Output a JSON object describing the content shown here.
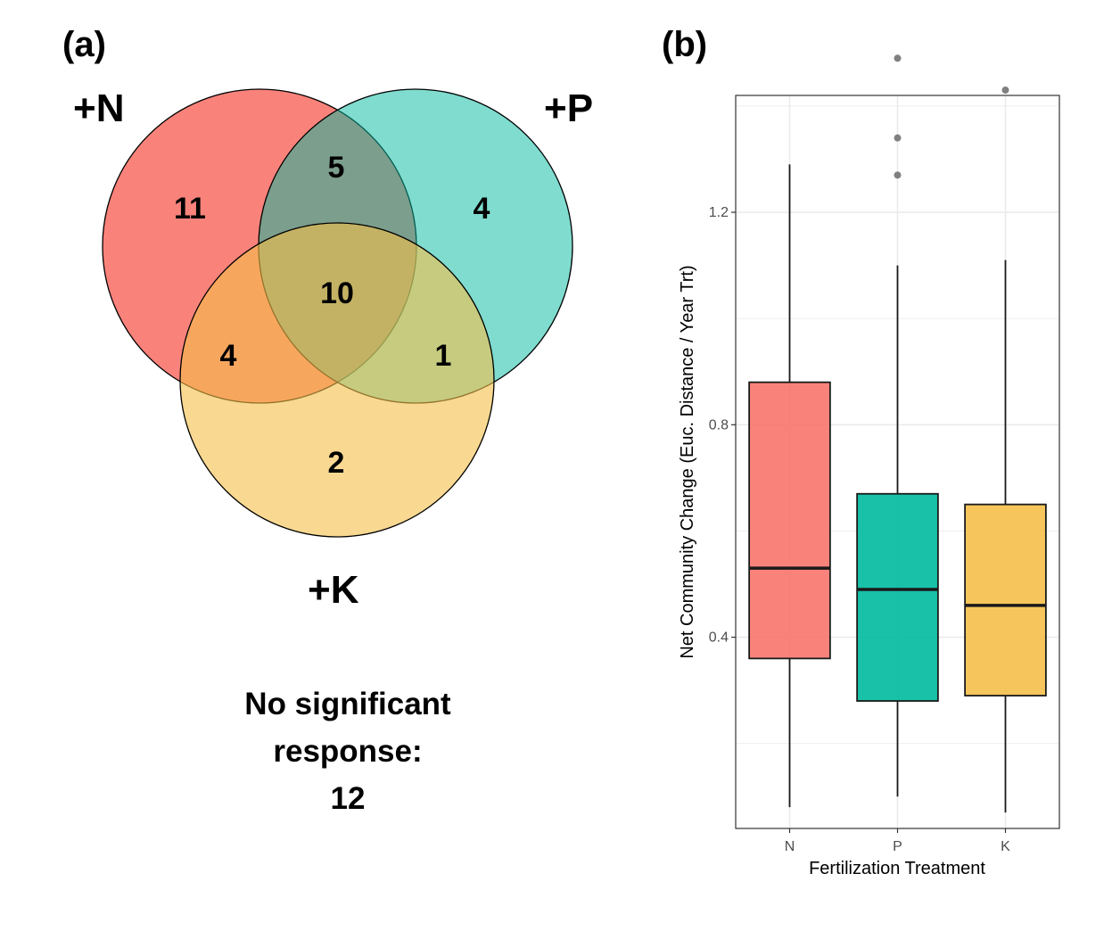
{
  "panels": {
    "a": "(a)",
    "b": "(b)"
  },
  "colors": {
    "N": "#F8766D",
    "P": "#00BA9F",
    "K": "#F5C04A",
    "grid": "#ebebeb",
    "outlier": "#808080"
  },
  "chart_data": [
    {
      "type": "venn",
      "sets": [
        {
          "id": "N",
          "label": "+N"
        },
        {
          "id": "P",
          "label": "+P"
        },
        {
          "id": "K",
          "label": "+K"
        }
      ],
      "regions": [
        {
          "sets": [
            "N"
          ],
          "count": 11
        },
        {
          "sets": [
            "P"
          ],
          "count": 4
        },
        {
          "sets": [
            "K"
          ],
          "count": 2
        },
        {
          "sets": [
            "N",
            "P"
          ],
          "count": 5
        },
        {
          "sets": [
            "N",
            "K"
          ],
          "count": 4
        },
        {
          "sets": [
            "P",
            "K"
          ],
          "count": 1
        },
        {
          "sets": [
            "N",
            "P",
            "K"
          ],
          "count": 10
        }
      ],
      "annotation": {
        "lines": [
          "No significant",
          "response:",
          "12"
        ]
      }
    },
    {
      "type": "box",
      "xlabel": "Fertilization Treatment",
      "ylabel": "Net Community Change (Euc. Distance / Year Trt)",
      "ylim": [
        0.04,
        1.42
      ],
      "yticks": [
        0.4,
        0.8,
        1.2
      ],
      "grid": true,
      "series": [
        {
          "category": "N",
          "whisker_low": 0.08,
          "q1": 0.36,
          "median": 0.53,
          "q3": 0.88,
          "whisker_high": 1.29,
          "outliers": []
        },
        {
          "category": "P",
          "whisker_low": 0.1,
          "q1": 0.28,
          "median": 0.49,
          "q3": 0.67,
          "whisker_high": 1.1,
          "outliers": [
            1.27,
            1.34,
            1.49
          ]
        },
        {
          "category": "K",
          "whisker_low": 0.07,
          "q1": 0.29,
          "median": 0.46,
          "q3": 0.65,
          "whisker_high": 1.11,
          "outliers": [
            1.43
          ]
        }
      ]
    }
  ]
}
